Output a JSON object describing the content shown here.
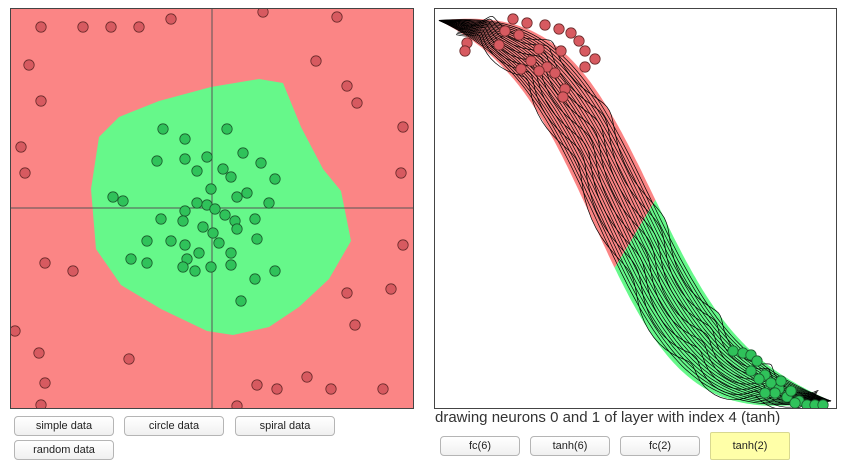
{
  "caption": "drawing neurons 0 and 1 of layer with index 4 (tanh)",
  "data_buttons": [
    "simple data",
    "circle data",
    "spiral data",
    "random data"
  ],
  "layer_buttons": [
    "fc(6)",
    "tanh(6)",
    "fc(2)",
    "tanh(2)"
  ],
  "active_layer": "tanh(2)",
  "colors": {
    "negative_region": "#fb8585",
    "positive_region": "#66f88a",
    "negative_point": "#d75a60",
    "positive_point": "#2fc25a",
    "axis": "#555555"
  }
}
